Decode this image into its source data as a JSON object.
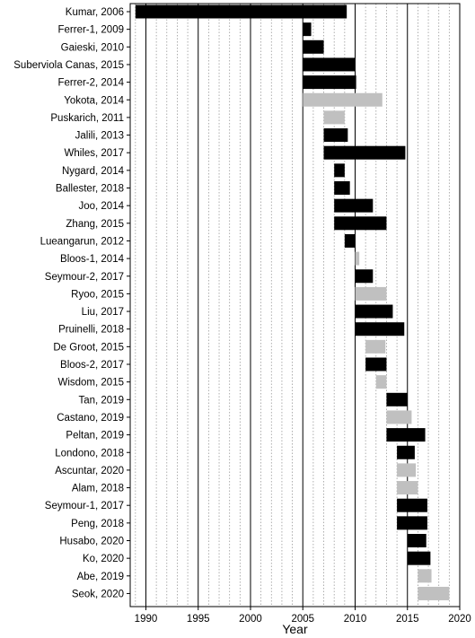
{
  "chart_data": {
    "type": "bar",
    "orientation": "horizontal",
    "title": "",
    "xlabel": "Year",
    "ylabel": "",
    "xlim": [
      1988.5,
      2020
    ],
    "xticks": [
      1990,
      1995,
      2000,
      2005,
      2010,
      2015,
      2020
    ],
    "grid": {
      "major_lines": "solid vertical every 5 years",
      "minor_lines": "dotted vertical every year"
    },
    "legend": "none",
    "colors": {
      "black": "#000000",
      "gray": "#c0c0c0"
    },
    "studies": [
      {
        "label": "Kumar, 2006",
        "start": 1989,
        "end": 2009.2,
        "color": "black"
      },
      {
        "label": "Ferrer-1, 2009",
        "start": 2005,
        "end": 2005.8,
        "color": "black"
      },
      {
        "label": "Gaieski, 2010",
        "start": 2005,
        "end": 2007,
        "color": "black"
      },
      {
        "label": "Suberviola Canas, 2015",
        "start": 2005,
        "end": 2010,
        "color": "black"
      },
      {
        "label": "Ferrer-2, 2014",
        "start": 2005,
        "end": 2010.1,
        "color": "black"
      },
      {
        "label": "Yokota, 2014",
        "start": 2005,
        "end": 2012.6,
        "color": "gray"
      },
      {
        "label": "Puskarich, 2011",
        "start": 2007,
        "end": 2009,
        "color": "gray"
      },
      {
        "label": "Jalili, 2013",
        "start": 2007,
        "end": 2009.3,
        "color": "black"
      },
      {
        "label": "Whiles, 2017",
        "start": 2007,
        "end": 2014.8,
        "color": "black"
      },
      {
        "label": "Nygard, 2014",
        "start": 2008,
        "end": 2009,
        "color": "black"
      },
      {
        "label": "Ballester, 2018",
        "start": 2008,
        "end": 2009.5,
        "color": "black"
      },
      {
        "label": "Joo, 2014",
        "start": 2008,
        "end": 2011.7,
        "color": "black"
      },
      {
        "label": "Zhang, 2015",
        "start": 2008,
        "end": 2013,
        "color": "black"
      },
      {
        "label": "Lueangarun, 2012",
        "start": 2009,
        "end": 2010,
        "color": "black"
      },
      {
        "label": "Bloos-1, 2014",
        "start": 2010,
        "end": 2010.4,
        "color": "gray"
      },
      {
        "label": "Seymour-2, 2017",
        "start": 2010,
        "end": 2011.7,
        "color": "black"
      },
      {
        "label": "Ryoo, 2015",
        "start": 2010,
        "end": 2013,
        "color": "gray"
      },
      {
        "label": "Liu, 2017",
        "start": 2010,
        "end": 2013.6,
        "color": "black"
      },
      {
        "label": "Pruinelli, 2018",
        "start": 2010,
        "end": 2014.7,
        "color": "black"
      },
      {
        "label": "De Groot, 2015",
        "start": 2011,
        "end": 2012.9,
        "color": "gray"
      },
      {
        "label": "Bloos-2, 2017",
        "start": 2011,
        "end": 2013,
        "color": "black"
      },
      {
        "label": "Wisdom, 2015",
        "start": 2012,
        "end": 2013,
        "color": "gray"
      },
      {
        "label": "Tan, 2019",
        "start": 2013,
        "end": 2015,
        "color": "black"
      },
      {
        "label": "Castano, 2019",
        "start": 2013,
        "end": 2015.4,
        "color": "gray"
      },
      {
        "label": "Peltan, 2019",
        "start": 2013,
        "end": 2016.7,
        "color": "black"
      },
      {
        "label": "Londono, 2018",
        "start": 2014,
        "end": 2015.7,
        "color": "black"
      },
      {
        "label": "Ascuntar, 2020",
        "start": 2014,
        "end": 2015.8,
        "color": "gray"
      },
      {
        "label": "Alam, 2018",
        "start": 2014,
        "end": 2016,
        "color": "gray"
      },
      {
        "label": "Seymour-1, 2017",
        "start": 2014,
        "end": 2016.9,
        "color": "black"
      },
      {
        "label": "Peng, 2018",
        "start": 2014,
        "end": 2016.9,
        "color": "black"
      },
      {
        "label": "Husabo, 2020",
        "start": 2015,
        "end": 2016.8,
        "color": "black"
      },
      {
        "label": "Ko, 2020",
        "start": 2015,
        "end": 2017.2,
        "color": "black"
      },
      {
        "label": "Abe, 2019",
        "start": 2016,
        "end": 2017.3,
        "color": "gray"
      },
      {
        "label": "Seok, 2020",
        "start": 2016,
        "end": 2019,
        "color": "gray"
      }
    ]
  }
}
